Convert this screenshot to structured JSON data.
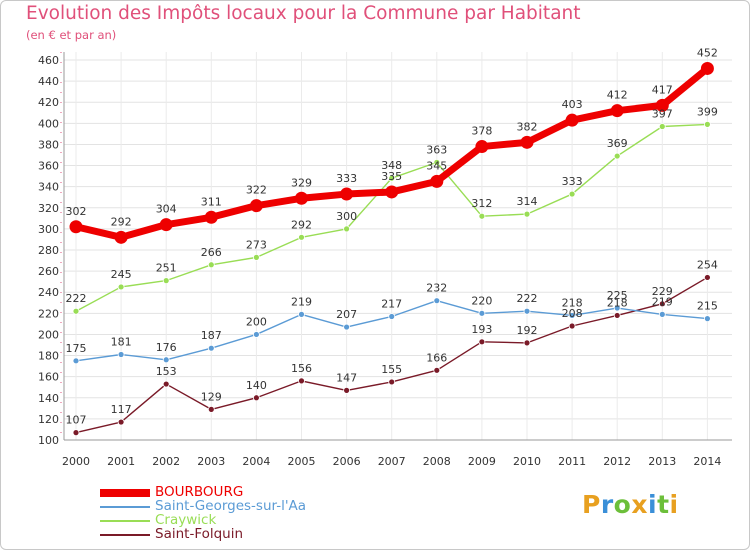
{
  "title": "Evolution des Impôts locaux pour la Commune par Habitant",
  "subtitle": "(en € et par an)",
  "logo": "Proxiti",
  "chart_data": {
    "type": "line",
    "title": "Evolution des Impôts locaux pour la Commune par Habitant",
    "ylabel": "(en € et par an)",
    "xlabel": "",
    "ylim": [
      100,
      460
    ],
    "yticks": [
      100,
      120,
      140,
      160,
      180,
      200,
      220,
      240,
      260,
      280,
      300,
      320,
      340,
      360,
      380,
      400,
      420,
      440,
      460
    ],
    "categories": [
      "2000",
      "2001",
      "2002",
      "2003",
      "2004",
      "2005",
      "2006",
      "2007",
      "2008",
      "2009",
      "2010",
      "2011",
      "2012",
      "2013",
      "2014"
    ],
    "series": [
      {
        "name": "BOURBOURG",
        "color": "#ee0000",
        "values": [
          302,
          292,
          304,
          311,
          322,
          329,
          333,
          335,
          345,
          378,
          382,
          403,
          412,
          417,
          452
        ]
      },
      {
        "name": "Saint-Georges-sur-l'Aa",
        "color": "#5b9bd5",
        "values": [
          175,
          181,
          176,
          187,
          200,
          219,
          207,
          217,
          232,
          220,
          222,
          218,
          225,
          219,
          215
        ]
      },
      {
        "name": "Craywick",
        "color": "#99dd55",
        "values": [
          222,
          245,
          251,
          266,
          273,
          292,
          300,
          348,
          363,
          312,
          314,
          333,
          369,
          397,
          399
        ]
      },
      {
        "name": "Saint-Folquin",
        "color": "#7a1a28",
        "values": [
          107,
          117,
          153,
          129,
          140,
          156,
          147,
          155,
          166,
          193,
          192,
          208,
          218,
          229,
          254
        ]
      }
    ],
    "legend_position": "bottom-left",
    "grid": true
  }
}
